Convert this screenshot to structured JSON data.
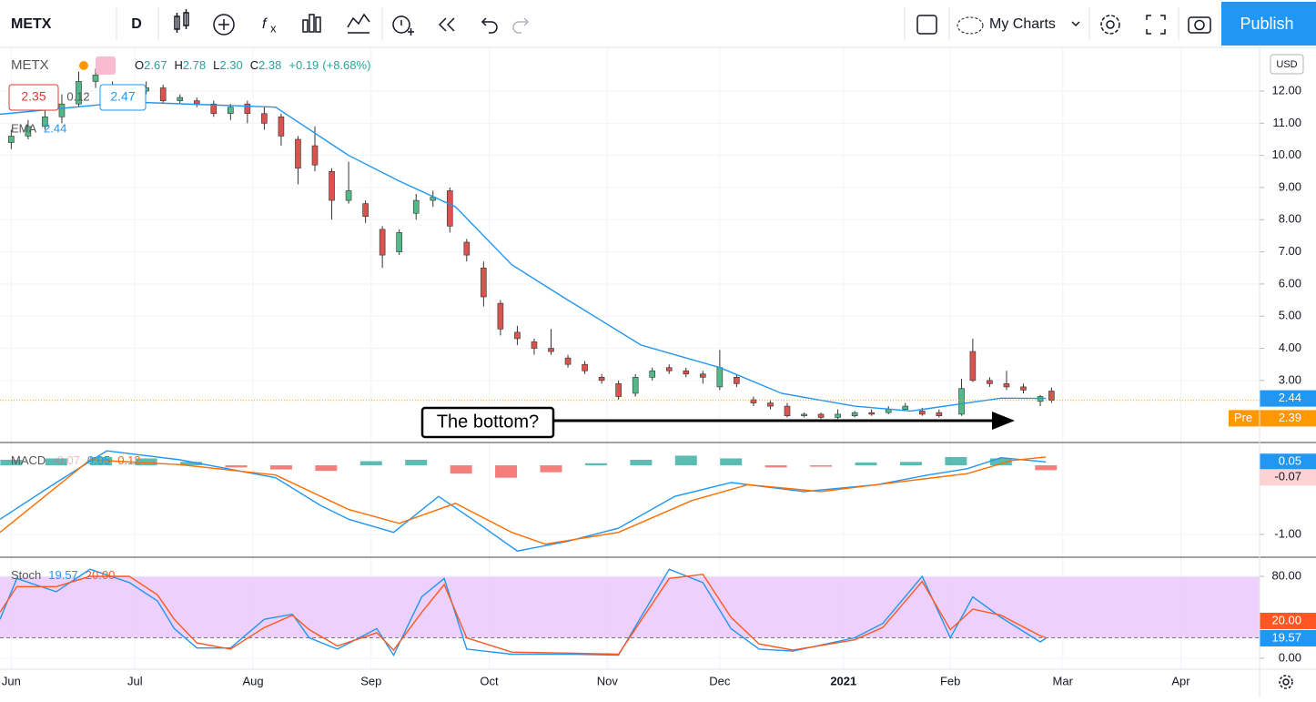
{
  "toolbar": {
    "symbol": "METX",
    "interval": "D",
    "layout": "My Charts",
    "publish": "Publish"
  },
  "chart_data": [
    {
      "type": "candlestick",
      "symbol": "METX",
      "ohlc_legend": [
        {
          "label": "O",
          "value": 2.67
        },
        {
          "label": "H",
          "value": 2.78
        },
        {
          "label": "L",
          "value": {
            "value": 2.3,
            "label": "2.30"
          }
        },
        {
          "label": "C",
          "value": 2.38
        }
      ],
      "change": {
        "value": 0.19,
        "label": "+0.19"
      },
      "change_pct": {
        "value": 8.68,
        "label": "(+8.68%)"
      },
      "bid": 2.35,
      "spread": 0.12,
      "ask": 2.47,
      "currency": "USD",
      "x": [
        0,
        3,
        6,
        9,
        12,
        15,
        18,
        21,
        24,
        27,
        30,
        33,
        36,
        39,
        42,
        45,
        48,
        51,
        54,
        57,
        60,
        63,
        66,
        69,
        72,
        75,
        78,
        81,
        84,
        87,
        90,
        93,
        96,
        99,
        102,
        105,
        108,
        111,
        114,
        117,
        120,
        123,
        126,
        129,
        132,
        135,
        138,
        141,
        144,
        147,
        150,
        153,
        156,
        159,
        162,
        165,
        169,
        171,
        174,
        177,
        180,
        183,
        185
      ],
      "open": [
        10.4,
        10.6,
        10.9,
        11.2,
        11.6,
        12.3,
        12.2,
        11.9,
        12.0,
        12.1,
        11.7,
        11.7,
        11.6,
        11.3,
        11.6,
        11.3,
        11.2,
        10.5,
        10.3,
        9.5,
        8.6,
        8.5,
        7.7,
        7.0,
        8.2,
        8.6,
        8.9,
        7.3,
        6.5,
        5.4,
        4.5,
        4.2,
        4.0,
        3.7,
        3.5,
        3.1,
        2.9,
        2.6,
        3.1,
        3.4,
        3.3,
        3.2,
        2.8,
        3.1,
        2.4,
        2.3,
        2.2,
        1.9,
        1.95,
        1.85,
        1.9,
        2.0,
        2.0,
        2.1,
        2.05,
        2.0,
        1.95,
        3.9,
        3.0,
        2.9,
        2.8,
        2.35,
        2.67
      ],
      "high": [
        10.8,
        11.1,
        11.4,
        11.9,
        12.6,
        12.7,
        12.3,
        12.2,
        12.3,
        12.2,
        11.9,
        11.8,
        11.7,
        11.6,
        11.7,
        11.5,
        11.3,
        10.6,
        10.9,
        9.6,
        9.8,
        8.6,
        7.8,
        7.7,
        8.8,
        8.9,
        9.0,
        7.4,
        6.7,
        5.5,
        4.7,
        4.3,
        4.6,
        3.8,
        3.6,
        3.2,
        3.0,
        3.2,
        3.4,
        3.5,
        3.4,
        3.3,
        3.95,
        3.2,
        2.5,
        2.4,
        2.3,
        2.0,
        2.0,
        2.1,
        2.05,
        2.1,
        2.2,
        2.3,
        2.15,
        2.1,
        3.05,
        4.3,
        3.1,
        3.3,
        2.9,
        2.55,
        2.78
      ],
      "low": [
        10.2,
        10.5,
        10.8,
        11.0,
        11.5,
        12.1,
        11.7,
        11.8,
        11.9,
        11.6,
        11.6,
        11.5,
        11.2,
        11.1,
        11.0,
        10.8,
        10.3,
        9.1,
        9.5,
        8.0,
        8.5,
        7.9,
        6.5,
        6.9,
        8.0,
        8.4,
        7.6,
        6.7,
        5.3,
        4.4,
        4.1,
        3.8,
        3.8,
        3.4,
        3.2,
        2.9,
        2.4,
        2.5,
        3.0,
        3.2,
        3.1,
        2.9,
        2.7,
        2.8,
        2.2,
        2.1,
        1.85,
        1.85,
        1.8,
        1.8,
        1.85,
        1.9,
        1.95,
        2.05,
        1.9,
        1.85,
        1.9,
        2.95,
        2.8,
        2.7,
        2.6,
        2.2,
        2.3
      ],
      "close": [
        10.6,
        10.9,
        11.2,
        11.6,
        12.3,
        12.5,
        11.9,
        12.0,
        12.1,
        11.7,
        11.8,
        11.6,
        11.3,
        11.5,
        11.3,
        11.0,
        10.6,
        9.6,
        9.7,
        8.6,
        8.9,
        8.1,
        6.9,
        7.6,
        8.6,
        8.7,
        7.8,
        6.9,
        5.6,
        4.6,
        4.3,
        4.0,
        3.9,
        3.5,
        3.3,
        3.0,
        2.5,
        3.1,
        3.3,
        3.3,
        3.2,
        3.1,
        3.4,
        2.9,
        2.3,
        2.2,
        1.9,
        1.95,
        1.85,
        1.95,
        2.0,
        1.95,
        2.1,
        2.2,
        1.95,
        1.9,
        2.75,
        3.0,
        2.9,
        2.8,
        2.7,
        2.5,
        2.38
      ],
      "colors": {
        "up": "#53b987",
        "down": "#d9534f"
      },
      "ema": {
        "name": "EMA",
        "color": "#2196f3",
        "x": [
          -2,
          21,
          47,
          60,
          69,
          79,
          89,
          99,
          112,
          126,
          137,
          150,
          160,
          170,
          176,
          184
        ],
        "values": [
          11.28,
          11.66,
          11.5,
          10.0,
          9.2,
          8.4,
          6.6,
          5.5,
          4.1,
          3.4,
          2.6,
          2.2,
          2.05,
          2.3,
          2.45,
          2.44
        ],
        "last": 2.44
      },
      "pre": {
        "label": "Pre",
        "value": 2.39,
        "color": "#ff9800"
      },
      "annotation": "The bottom?",
      "ylim": [
        1.07,
        13.36
      ],
      "yticks": [
        {
          "value": 3,
          "label": "3.00"
        },
        {
          "value": 4,
          "label": "4.00"
        },
        {
          "value": 5,
          "label": "5.00"
        },
        {
          "value": 6,
          "label": "6.00"
        },
        {
          "value": 7,
          "label": "7.00"
        },
        {
          "value": 8,
          "label": "8.00"
        },
        {
          "value": 9,
          "label": "9.00"
        },
        {
          "value": 10,
          "label": "10.00"
        },
        {
          "value": 11,
          "label": "11.00"
        },
        {
          "value": 12,
          "label": "12.00"
        }
      ]
    },
    {
      "type": "macd",
      "name": "MACD",
      "legend_values": [
        -0.07,
        0.05,
        0.12
      ],
      "histogram": {
        "x": [
          0,
          8,
          16,
          24,
          32,
          40,
          48,
          56,
          64,
          72,
          80,
          88,
          96,
          104,
          112,
          120,
          128,
          136,
          144,
          152,
          160,
          168,
          176,
          184
        ],
        "values": [
          0.08,
          0.1,
          0.12,
          0.1,
          0.05,
          -0.03,
          -0.06,
          -0.08,
          0.06,
          0.08,
          -0.12,
          -0.18,
          -0.1,
          0.03,
          0.08,
          0.14,
          0.1,
          -0.03,
          -0.02,
          0.04,
          0.05,
          0.12,
          0.1,
          -0.07
        ],
        "colors": {
          "up": "#26a69a",
          "down": "#ef5350"
        }
      },
      "series": [
        {
          "color": "#2196f3",
          "x": [
            -2,
            8,
            17,
            30,
            47,
            55,
            60,
            68,
            76,
            82,
            90,
            99,
            108,
            118,
            128,
            141,
            154,
            163,
            170,
            176,
            184
          ],
          "values": [
            -0.78,
            -0.25,
            0.21,
            0.08,
            -0.18,
            -0.58,
            -0.78,
            -0.97,
            -0.45,
            -0.78,
            -1.24,
            -1.1,
            -0.91,
            -0.45,
            -0.25,
            -0.38,
            -0.28,
            -0.14,
            -0.05,
            0.11,
            0.05
          ]
        },
        {
          "color": "#ff6d00",
          "x": [
            -2,
            14,
            30,
            47,
            60,
            69,
            79,
            89,
            95,
            108,
            121,
            131,
            144,
            160,
            170,
            178,
            184
          ],
          "values": [
            -0.97,
            0.08,
            0.01,
            -0.14,
            -0.64,
            -0.84,
            -0.55,
            -0.97,
            -1.14,
            -0.97,
            -0.51,
            -0.28,
            -0.38,
            -0.22,
            -0.12,
            0.07,
            0.12
          ]
        }
      ],
      "ylim": [
        -1.33,
        0.33
      ],
      "yticks": [
        {
          "value": -1,
          "label": "-1.00"
        }
      ]
    },
    {
      "type": "stochastic",
      "name": "Stoch",
      "legend_values": [
        19.57,
        {
          "value": 20,
          "label": "20.00"
        }
      ],
      "band": [
        20,
        80
      ],
      "band_color": "#e8c6fb",
      "x": [
        -2,
        1,
        8,
        14,
        21,
        26,
        29,
        33,
        39,
        45,
        50,
        53,
        58,
        65,
        68,
        73,
        77,
        81,
        89,
        99,
        108,
        117,
        123,
        128,
        133,
        139,
        150,
        155,
        162,
        167,
        171,
        176,
        183,
        184
      ],
      "series": [
        {
          "color": "#2196f3",
          "values": [
            38,
            78,
            65,
            87,
            74,
            56,
            29,
            10,
            10,
            38,
            43,
            20,
            9,
            29,
            3,
            60,
            78,
            9,
            4,
            4,
            3,
            87,
            74,
            29,
            9,
            7,
            20,
            34,
            80,
            20,
            60,
            40,
            16,
            19.57
          ]
        },
        {
          "color": "#ff5722",
          "values": [
            45,
            70,
            70,
            80,
            80,
            62,
            38,
            15,
            9,
            30,
            42,
            28,
            12,
            25,
            8,
            45,
            72,
            20,
            6,
            5,
            4,
            78,
            82,
            40,
            14,
            8,
            18,
            30,
            75,
            28,
            48,
            42,
            22,
            20
          ]
        }
      ],
      "ylim": [
        -10.7,
        98.7
      ],
      "yticks": [
        {
          "value": 0,
          "label": "0.00"
        },
        {
          "value": 80,
          "label": "80.00"
        }
      ],
      "xlim": [
        -2,
        222
      ],
      "xticks": [
        {
          "value": 0,
          "label": "Jun"
        },
        {
          "value": 22,
          "label": "Jul"
        },
        {
          "value": 43,
          "label": "Aug"
        },
        {
          "value": 64,
          "label": "Sep"
        },
        {
          "value": 85,
          "label": "Oct"
        },
        {
          "value": 106,
          "label": "Nov"
        },
        {
          "value": 126,
          "label": "Dec"
        },
        {
          "value": 148,
          "label": "2021"
        },
        {
          "value": 167,
          "label": "Feb"
        },
        {
          "value": 187,
          "label": "Mar"
        },
        {
          "value": 208,
          "label": "Apr"
        }
      ]
    }
  ]
}
